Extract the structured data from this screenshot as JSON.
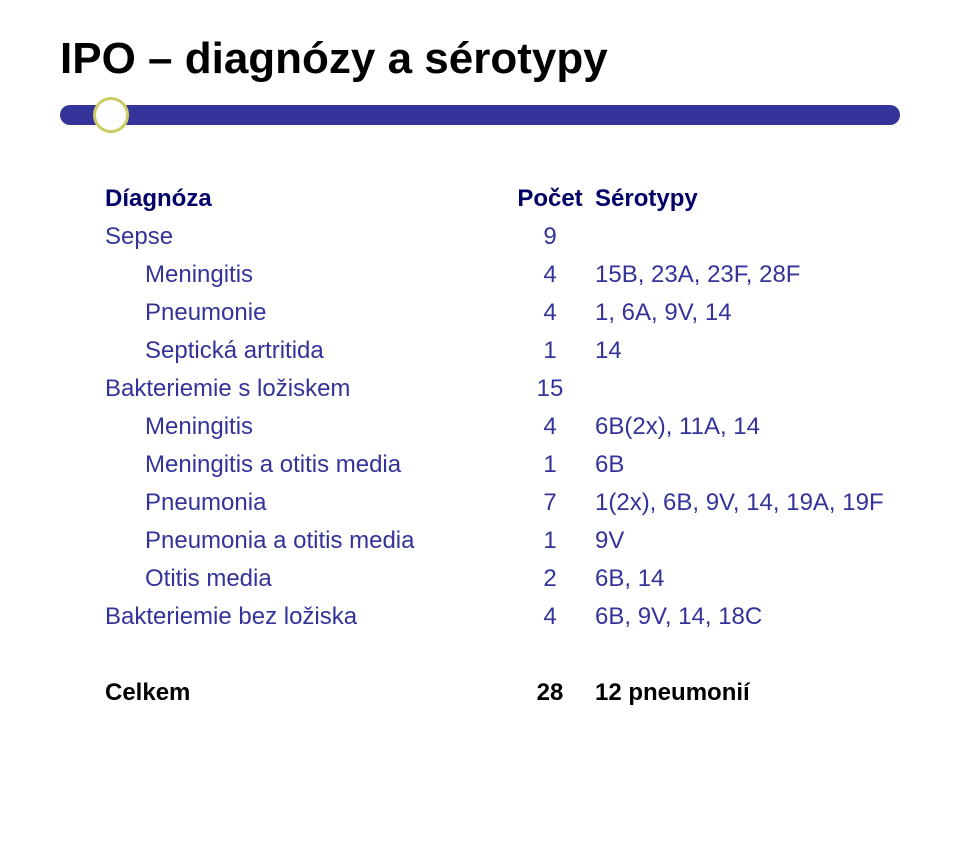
{
  "title": "IPO – diagnózy a sérotypy",
  "colors": {
    "rule_bar": "#333399",
    "bullet_border": "#cccc66",
    "text_main": "#333399",
    "text_header": "#000066",
    "text_black": "#000000",
    "background": "#ffffff"
  },
  "typography": {
    "title_fontsize": 44,
    "body_fontsize": 24,
    "font_family": "Arial"
  },
  "table": {
    "headers": {
      "diag": "Díagnóza",
      "count": "Počet",
      "ser": "Sérotypy"
    },
    "rows": [
      {
        "diag": "Sepse",
        "count": "9",
        "ser": "",
        "indent": 0
      },
      {
        "diag": "Meningitis",
        "count": "4",
        "ser": "15B, 23A, 23F, 28F",
        "indent": 1
      },
      {
        "diag": "Pneumonie",
        "count": "4",
        "ser": "1, 6A, 9V, 14",
        "indent": 1
      },
      {
        "diag": "Septická artritida",
        "count": "1",
        "ser": "14",
        "indent": 1
      },
      {
        "diag": "Bakteriemie s ložiskem",
        "count": "15",
        "ser": "",
        "indent": 0
      },
      {
        "diag": "Meningitis",
        "count": "4",
        "ser": "6B(2x), 11A, 14",
        "indent": 1
      },
      {
        "diag": "Meningitis a otitis media",
        "count": "1",
        "ser": "6B",
        "indent": 1
      },
      {
        "diag": "Pneumonia",
        "count": "7",
        "ser": "1(2x), 6B, 9V, 14, 19A, 19F",
        "indent": 1
      },
      {
        "diag": "Pneumonia a otitis media",
        "count": "1",
        "ser": "9V",
        "indent": 1
      },
      {
        "diag": "Otitis media",
        "count": "2",
        "ser": "6B, 14",
        "indent": 1
      },
      {
        "diag": "Bakteriemie bez ložiska",
        "count": "4",
        "ser": "6B, 9V, 14, 18C",
        "indent": 0
      }
    ],
    "total": {
      "diag": "Celkem",
      "count": "28",
      "ser": "12 pneumonií"
    }
  }
}
